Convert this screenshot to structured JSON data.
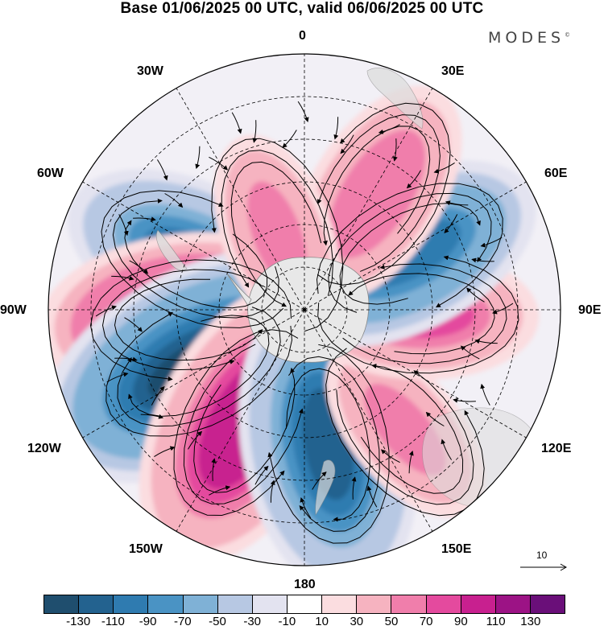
{
  "title": "Base 01/06/2025 00 UTC, valid 06/06/2025 00 UTC",
  "brand": "MODES",
  "brand_mark": "©",
  "longitude_labels": {
    "n0": "0",
    "e30": "30E",
    "e60": "60E",
    "e90": "90E",
    "e120": "120E",
    "e150": "150E",
    "s180": "180",
    "w150": "150W",
    "w120": "120W",
    "w90": "90W",
    "w60": "60W",
    "w30": "30W"
  },
  "vector_reference": {
    "label": "10",
    "icon": "arrow-right-icon"
  },
  "colorbar": {
    "colors": [
      "#1f4e6e",
      "#23628f",
      "#2f7bb0",
      "#4a93c4",
      "#7fb1d6",
      "#b7c8e3",
      "#e3e3f0",
      "#ffffff",
      "#fbdde0",
      "#f6b3c0",
      "#f07eab",
      "#e44a9e",
      "#c8208f",
      "#9c1385",
      "#6a0f79"
    ],
    "tick_labels": [
      "-130",
      "-110",
      "-90",
      "-70",
      "-50",
      "-30",
      "-10",
      "10",
      "30",
      "50",
      "70",
      "90",
      "110",
      "130"
    ]
  },
  "anomaly_centers": [
    {
      "lon": -65,
      "lat": -48,
      "value": -90
    },
    {
      "lon": -95,
      "lat": -50,
      "value": 120
    },
    {
      "lon": -118,
      "lat": -48,
      "value": -130
    },
    {
      "lon": -152,
      "lat": -45,
      "value": 110
    },
    {
      "lon": 170,
      "lat": -42,
      "value": -110
    },
    {
      "lon": 140,
      "lat": -35,
      "value": 60
    },
    {
      "lon": 92,
      "lat": -50,
      "value": 80
    },
    {
      "lon": 62,
      "lat": -48,
      "value": -100
    },
    {
      "lon": 32,
      "lat": -42,
      "value": 70
    },
    {
      "lon": -20,
      "lat": -62,
      "value": 60
    }
  ]
}
